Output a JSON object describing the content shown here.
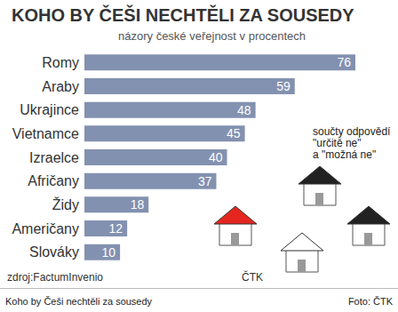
{
  "chart_data": {
    "type": "bar",
    "title": "KOHO BY ČEŠI NECHTĚLI ZA SOUSEDY",
    "subtitle": "názory české veřejnost v procentech",
    "categories": [
      "Romy",
      "Araby",
      "Ukrajince",
      "Vietnamce",
      "Izraelce",
      "Afričany",
      "Židy",
      "Američany",
      "Slováky"
    ],
    "values": [
      76,
      59,
      48,
      45,
      40,
      37,
      18,
      12,
      10
    ],
    "color": "#8391b0",
    "orientation": "horizontal",
    "data_labels": true,
    "tick_labels": "y",
    "grid": false,
    "xlim": [
      0,
      76
    ],
    "xticks": [],
    "annotations": [
      "součty odpovědí",
      "\"určitě ne\"",
      "a \"možná ne\""
    ],
    "source": "zdroj:FactumInvenio",
    "credit": "ČTK",
    "caption": "Koho by Češi nechtěli za sousedy",
    "photo_credit": "Foto: ČTK"
  }
}
